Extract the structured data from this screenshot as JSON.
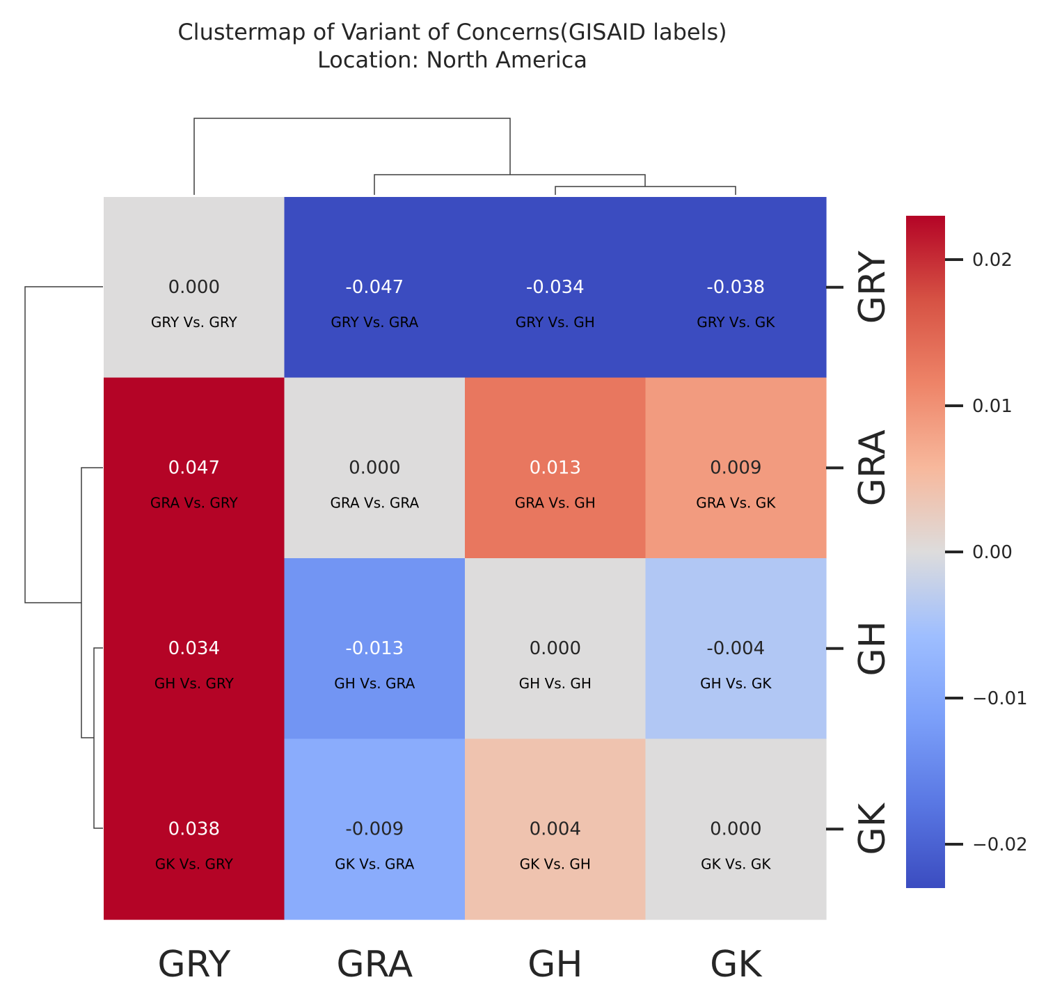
{
  "chart_data": {
    "type": "heatmap",
    "title": "Clustermap of Variant of Concerns(GISAID labels)",
    "subtitle": "Location: North America",
    "rows": [
      "GRY",
      "GRA",
      "GH",
      "GK"
    ],
    "columns": [
      "GRY",
      "GRA",
      "GH",
      "GK"
    ],
    "values": [
      [
        0.0,
        -0.047,
        -0.034,
        -0.038
      ],
      [
        0.047,
        0.0,
        0.013,
        0.009
      ],
      [
        0.034,
        -0.013,
        0.0,
        -0.004
      ],
      [
        0.038,
        -0.009,
        0.004,
        0.0
      ]
    ],
    "value_labels": [
      [
        "0.000",
        "-0.047",
        "-0.034",
        "-0.038"
      ],
      [
        "0.047",
        "0.000",
        "0.013",
        "0.009"
      ],
      [
        "0.034",
        "-0.013",
        "0.000",
        "-0.004"
      ],
      [
        "0.038",
        "-0.009",
        "0.004",
        "0.000"
      ]
    ],
    "cell_annotations": [
      [
        "GRY Vs. GRY",
        "GRY Vs. GRA",
        "GRY Vs. GH",
        "GRY Vs. GK"
      ],
      [
        "GRA Vs. GRY",
        "GRA Vs. GRA",
        "GRA Vs. GH",
        "GRA Vs. GK"
      ],
      [
        "GH Vs. GRY",
        "GH Vs. GRA",
        "GH Vs. GH",
        "GH Vs. GK"
      ],
      [
        "GK Vs. GRY",
        "GK Vs. GRA",
        "GK Vs. GH",
        "GK Vs. GK"
      ]
    ],
    "colormap": "coolwarm",
    "color_range": [
      -0.023,
      0.023
    ],
    "colorbar": {
      "ticks": [
        0.02,
        0.01,
        0.0,
        -0.01,
        -0.02
      ],
      "tick_labels": [
        "0.02",
        "0.01",
        "0.00",
        "−0.01",
        "−0.02"
      ],
      "placement": "right"
    },
    "dendrograms": [
      "top",
      "left"
    ]
  }
}
